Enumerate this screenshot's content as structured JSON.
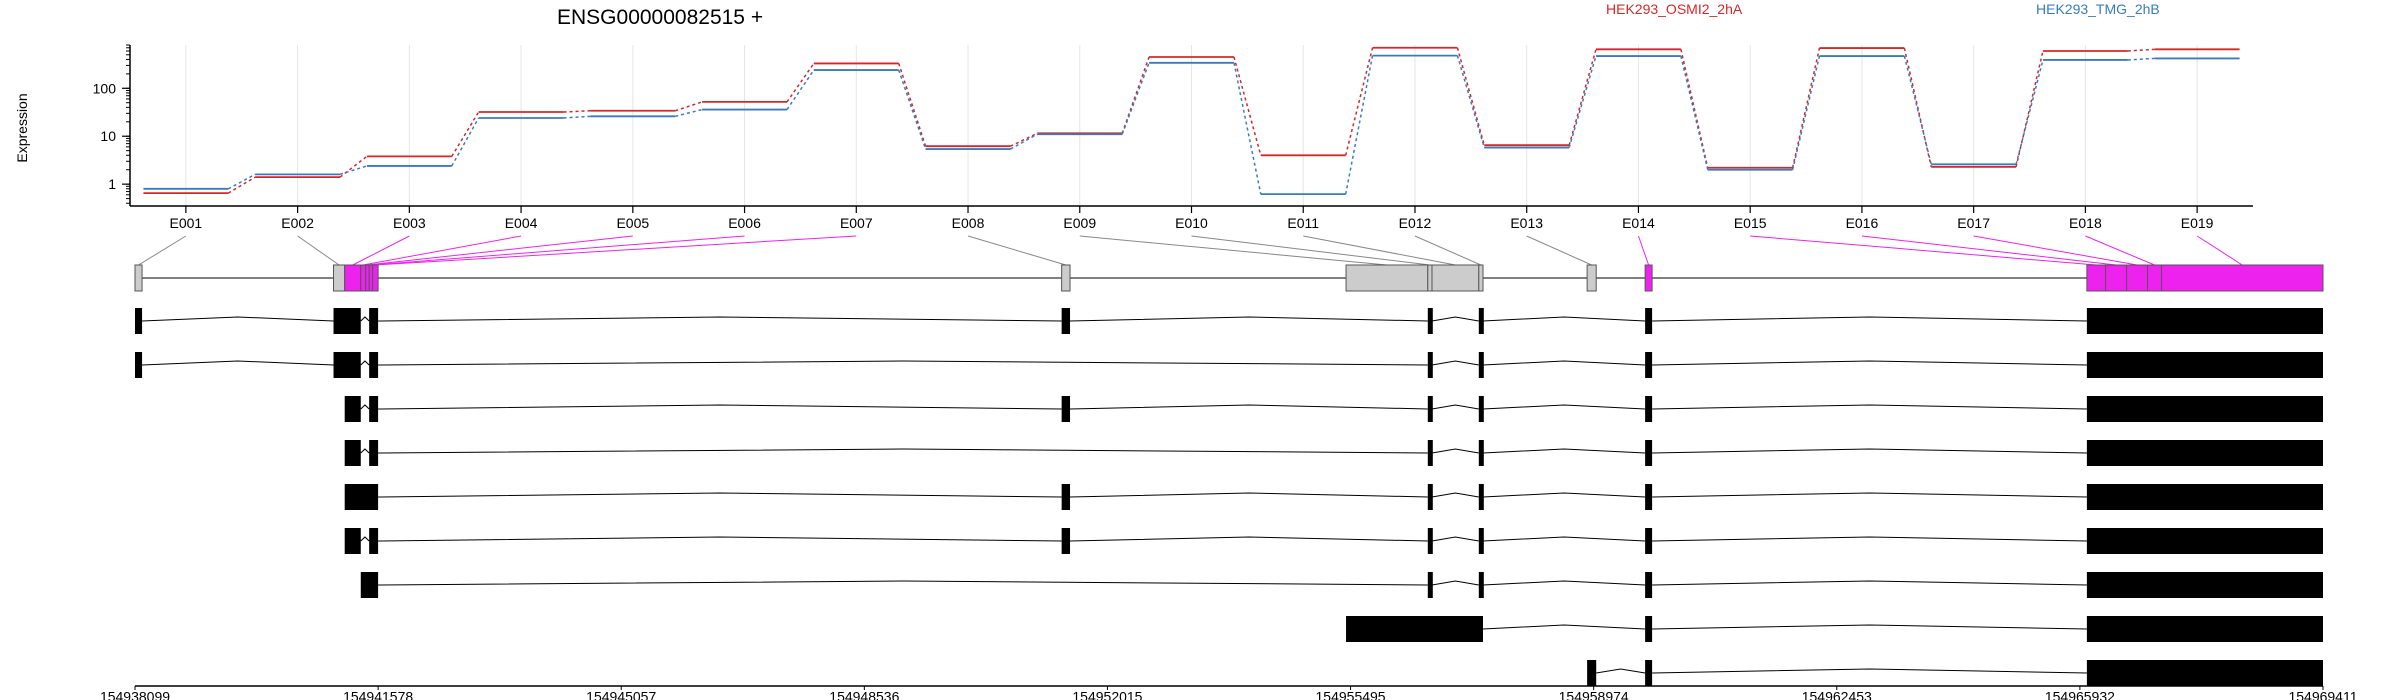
{
  "chart_data": {
    "type": "line",
    "title": "ENSG00000082515 +",
    "ylabel": "Expression",
    "yscale": "log",
    "ylim": [
      0.35,
      800
    ],
    "yticks": [
      1,
      10,
      100
    ],
    "ytick_labels": [
      "1",
      "10",
      "100"
    ],
    "legend_placement": "top-right",
    "categories": [
      "E001",
      "E002",
      "E003",
      "E004",
      "E005",
      "E006",
      "E007",
      "E008",
      "E009",
      "E010",
      "E011",
      "E012",
      "E013",
      "E014",
      "E015",
      "E016",
      "E017",
      "E018",
      "E019"
    ],
    "series": [
      {
        "name": "HEK293_OSMI2_2hA",
        "color": "#d62728",
        "values": [
          0.65,
          1.4,
          3.8,
          32,
          34,
          52,
          330,
          6.2,
          11.5,
          450,
          4.0,
          700,
          6.5,
          650,
          2.2,
          690,
          2.3,
          600,
          650
        ]
      },
      {
        "name": "HEK293_TMG_2hB",
        "color": "#3a7bbf",
        "values": [
          0.8,
          1.6,
          2.4,
          24,
          26,
          36,
          240,
          5.4,
          11.0,
          340,
          0.62,
          480,
          5.8,
          470,
          2.0,
          470,
          2.6,
          390,
          420
        ]
      }
    ],
    "genome_axis": {
      "range": [
        154938099,
        154969411
      ],
      "tick_labels": [
        "154938099",
        "154941578",
        "154945057",
        "154948536",
        "154952015",
        "154955495",
        "154958974",
        "154962453",
        "154965932",
        "154969411"
      ]
    },
    "gene_model": {
      "exons": [
        {
          "id": "E001",
          "start": 154938099,
          "end": 154938200
        },
        {
          "id": "E002",
          "start": 154940940,
          "end": 154941100
        },
        {
          "id": "E003",
          "start": 154941100,
          "end": 154941330
        },
        {
          "id": "E004",
          "start": 154941330,
          "end": 154941400
        },
        {
          "id": "E005",
          "start": 154941400,
          "end": 154941450
        },
        {
          "id": "E006",
          "start": 154941450,
          "end": 154941500
        },
        {
          "id": "E007",
          "start": 154941500,
          "end": 154941578
        },
        {
          "id": "E008",
          "start": 154951360,
          "end": 154951480
        },
        {
          "id": "E009",
          "start": 154955430,
          "end": 154956600
        },
        {
          "id": "E010",
          "start": 154956600,
          "end": 154956660
        },
        {
          "id": "E011",
          "start": 154956660,
          "end": 154957330
        },
        {
          "id": "E012",
          "start": 154957330,
          "end": 154957390
        },
        {
          "id": "E013",
          "start": 154958880,
          "end": 154959010
        },
        {
          "id": "E014",
          "start": 154959710,
          "end": 154959810
        },
        {
          "id": "E015",
          "start": 154966032,
          "end": 154966300
        },
        {
          "id": "E016",
          "start": 154966300,
          "end": 154966600
        },
        {
          "id": "E017",
          "start": 154966600,
          "end": 154966900
        },
        {
          "id": "E018",
          "start": 154966900,
          "end": 154967100
        },
        {
          "id": "E019",
          "start": 154967100,
          "end": 154969411
        }
      ],
      "highlighted": [
        "E003",
        "E004",
        "E005",
        "E006",
        "E007",
        "E014",
        "E015",
        "E016",
        "E017",
        "E018",
        "E019"
      ],
      "highlight_color": "#ee22ee",
      "exon_color": "#cccccc"
    },
    "transcripts": [
      {
        "exons": [
          [
            154938099,
            154938200
          ],
          [
            154940940,
            154941330
          ],
          [
            154941450,
            154941578
          ],
          [
            154951360,
            154951480
          ],
          [
            154956600,
            154956660
          ],
          [
            154957330,
            154957390
          ],
          [
            154959710,
            154959810
          ],
          [
            154966032,
            154969411
          ]
        ]
      },
      {
        "exons": [
          [
            154938099,
            154938200
          ],
          [
            154940940,
            154941330
          ],
          [
            154941450,
            154941578
          ],
          [
            154956600,
            154956660
          ],
          [
            154957330,
            154957390
          ],
          [
            154959710,
            154959810
          ],
          [
            154966032,
            154969411
          ]
        ]
      },
      {
        "exons": [
          [
            154941100,
            154941330
          ],
          [
            154941450,
            154941578
          ],
          [
            154951360,
            154951480
          ],
          [
            154956600,
            154956660
          ],
          [
            154957330,
            154957390
          ],
          [
            154959710,
            154959810
          ],
          [
            154966032,
            154969411
          ]
        ]
      },
      {
        "exons": [
          [
            154941100,
            154941330
          ],
          [
            154941450,
            154941578
          ],
          [
            154956600,
            154956660
          ],
          [
            154957330,
            154957390
          ],
          [
            154959710,
            154959810
          ],
          [
            154966032,
            154969411
          ]
        ]
      },
      {
        "exons": [
          [
            154941100,
            154941578
          ],
          [
            154951360,
            154951480
          ],
          [
            154956600,
            154956660
          ],
          [
            154957330,
            154957390
          ],
          [
            154959710,
            154959810
          ],
          [
            154966032,
            154969411
          ]
        ]
      },
      {
        "exons": [
          [
            154941100,
            154941330
          ],
          [
            154941450,
            154941578
          ],
          [
            154951360,
            154951480
          ],
          [
            154956600,
            154956660
          ],
          [
            154957330,
            154957390
          ],
          [
            154959710,
            154959810
          ],
          [
            154966032,
            154969411
          ]
        ]
      },
      {
        "exons": [
          [
            154941330,
            154941578
          ],
          [
            154956600,
            154956660
          ],
          [
            154957330,
            154957390
          ],
          [
            154959710,
            154959810
          ],
          [
            154966032,
            154969411
          ]
        ]
      },
      {
        "exons": [
          [
            154955430,
            154957390
          ],
          [
            154959710,
            154959810
          ],
          [
            154966032,
            154969411
          ]
        ]
      },
      {
        "exons": [
          [
            154958880,
            154959010
          ],
          [
            154959710,
            154959810
          ],
          [
            154966032,
            154969411
          ]
        ]
      }
    ]
  }
}
